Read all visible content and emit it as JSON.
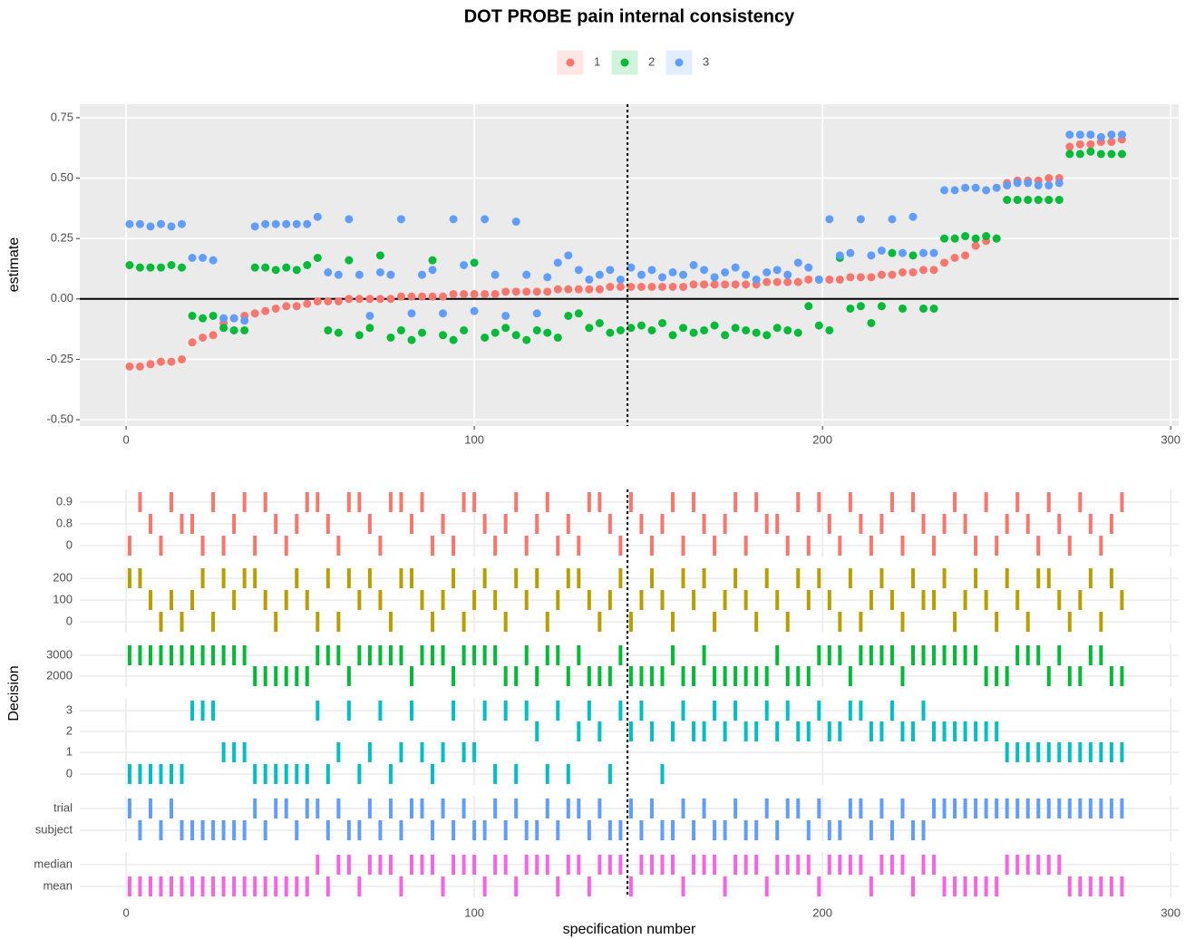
{
  "chart_data": [
    {
      "type": "scatter",
      "title": "DOT PROBE pain internal consistency",
      "y_label": "estimate",
      "xlim": [
        -13.3,
        302.3
      ],
      "xticks": [
        0,
        100,
        200,
        300
      ],
      "ylim": [
        -0.526,
        0.806
      ],
      "yticks": [
        {
          "value": 0.75,
          "label": "0.75"
        },
        {
          "value": 0.5,
          "label": "0.50"
        },
        {
          "value": 0.25,
          "label": "0.25"
        },
        {
          "value": 0,
          "label": "0.00"
        },
        {
          "value": -0.25,
          "label": "-0.25"
        },
        {
          "value": -0.5,
          "label": "-0.50"
        }
      ],
      "grid": true,
      "legend": "top",
      "hline": 0,
      "vline": 144,
      "x": [
        1,
        4,
        7,
        10,
        13,
        16,
        19,
        22,
        25,
        28,
        31,
        34,
        37,
        40,
        43,
        46,
        49,
        52,
        55,
        58,
        61,
        64,
        67,
        70,
        73,
        76,
        79,
        82,
        85,
        88,
        91,
        94,
        97,
        100,
        103,
        106,
        109,
        112,
        115,
        118,
        121,
        124,
        127,
        130,
        133,
        136,
        139,
        142,
        145,
        148,
        151,
        154,
        157,
        160,
        163,
        166,
        169,
        172,
        175,
        178,
        181,
        184,
        187,
        190,
        193,
        196,
        199,
        202,
        205,
        208,
        211,
        214,
        217,
        220,
        223,
        226,
        229,
        232,
        235,
        238,
        241,
        244,
        247,
        250,
        253,
        256,
        259,
        262,
        265,
        268,
        271,
        274,
        277,
        280,
        283,
        286
      ],
      "series": [
        {
          "name": "1",
          "color": "#F8766D",
          "values": [
            -0.28,
            -0.28,
            -0.27,
            -0.26,
            -0.26,
            -0.25,
            -0.18,
            -0.16,
            -0.15,
            -0.1,
            -0.08,
            -0.07,
            -0.06,
            -0.05,
            -0.04,
            -0.03,
            -0.03,
            -0.02,
            -0.01,
            -0.01,
            -0.01,
            0,
            0,
            0,
            0,
            0,
            0.01,
            0.01,
            0.01,
            0.01,
            0.01,
            0.02,
            0.02,
            0.02,
            0.02,
            0.02,
            0.03,
            0.03,
            0.03,
            0.03,
            0.03,
            0.04,
            0.04,
            0.04,
            0.04,
            0.04,
            0.05,
            0.05,
            0.05,
            0.05,
            0.05,
            0.05,
            0.05,
            0.05,
            0.06,
            0.06,
            0.06,
            0.06,
            0.06,
            0.06,
            0.06,
            0.07,
            0.07,
            0.07,
            0.07,
            0.08,
            0.08,
            0.08,
            0.08,
            0.09,
            0.09,
            0.09,
            0.1,
            0.1,
            0.11,
            0.11,
            0.12,
            0.12,
            0.15,
            0.17,
            0.18,
            0.22,
            0.24,
            0.25,
            0.48,
            0.49,
            0.49,
            0.49,
            0.5,
            0.5,
            0.63,
            0.64,
            0.64,
            0.65,
            0.65,
            0.66
          ]
        },
        {
          "name": "2",
          "color": "#00BA38",
          "values": [
            0.14,
            0.13,
            0.13,
            0.13,
            0.14,
            0.13,
            -0.07,
            -0.08,
            -0.07,
            -0.12,
            -0.13,
            -0.13,
            0.13,
            0.13,
            0.12,
            0.13,
            0.12,
            0.14,
            0.17,
            -0.13,
            -0.14,
            0.16,
            -0.15,
            -0.12,
            0.18,
            -0.16,
            -0.13,
            -0.17,
            -0.14,
            0.16,
            -0.15,
            -0.17,
            -0.13,
            0.15,
            -0.16,
            -0.14,
            -0.12,
            -0.15,
            -0.17,
            -0.13,
            -0.14,
            -0.16,
            -0.07,
            -0.06,
            -0.12,
            -0.1,
            -0.14,
            -0.13,
            -0.12,
            -0.11,
            -0.13,
            -0.1,
            -0.15,
            -0.12,
            -0.14,
            -0.13,
            -0.11,
            -0.15,
            -0.12,
            -0.13,
            -0.14,
            -0.15,
            -0.12,
            -0.13,
            -0.14,
            -0.03,
            -0.11,
            -0.13,
            0.17,
            -0.04,
            -0.03,
            -0.1,
            -0.03,
            0.19,
            -0.04,
            0.18,
            -0.04,
            -0.04,
            0.25,
            0.25,
            0.26,
            0.25,
            0.26,
            0.25,
            0.41,
            0.41,
            0.41,
            0.41,
            0.41,
            0.41,
            0.6,
            0.6,
            0.61,
            0.6,
            0.6,
            0.6
          ]
        },
        {
          "name": "3",
          "color": "#619CFF",
          "values": [
            0.31,
            0.31,
            0.3,
            0.31,
            0.3,
            0.31,
            0.17,
            0.17,
            0.16,
            -0.08,
            -0.08,
            -0.09,
            0.3,
            0.31,
            0.31,
            0.31,
            0.31,
            0.31,
            0.34,
            0.11,
            0.1,
            0.33,
            0.1,
            -0.07,
            0.11,
            0.1,
            0.33,
            -0.06,
            0.1,
            0.12,
            -0.06,
            0.33,
            0.14,
            -0.05,
            0.33,
            0.1,
            -0.07,
            0.32,
            0.1,
            -0.06,
            0.09,
            0.15,
            0.18,
            0.12,
            0.08,
            0.1,
            0.12,
            0.08,
            0.13,
            0.1,
            0.12,
            0.09,
            0.11,
            0.1,
            0.14,
            0.12,
            0.09,
            0.11,
            0.13,
            0.1,
            0.08,
            0.11,
            0.12,
            0.1,
            0.15,
            0.13,
            0.08,
            0.33,
            0.18,
            0.19,
            0.33,
            0.18,
            0.2,
            0.33,
            0.19,
            0.34,
            0.19,
            0.19,
            0.45,
            0.45,
            0.46,
            0.46,
            0.45,
            0.46,
            0.47,
            0.48,
            0.48,
            0.47,
            0.47,
            0.48,
            0.68,
            0.68,
            0.68,
            0.67,
            0.68,
            0.68
          ]
        }
      ]
    },
    {
      "type": "decision",
      "y_label": "Decision",
      "x_label": "specification number",
      "xlim": [
        -13.3,
        302.3
      ],
      "xticks": [
        0,
        100,
        200,
        300
      ],
      "vline": 144,
      "panels": [
        {
          "color": "#F8766D",
          "levels": [
            "0.9",
            "0.8",
            "0"
          ],
          "values": [
            2,
            0,
            1,
            2,
            0,
            1,
            1,
            2,
            0,
            2,
            1,
            0,
            2,
            0,
            1,
            2,
            1,
            0,
            0,
            1,
            2,
            0,
            0,
            1,
            2,
            0,
            0,
            1,
            0,
            2,
            1,
            2,
            0,
            0,
            1,
            2,
            1,
            0,
            2,
            1,
            0,
            2,
            1,
            2,
            0,
            0,
            1,
            2,
            0,
            1,
            2,
            1,
            0,
            2,
            0,
            1,
            2,
            1,
            0,
            2,
            0,
            1,
            1,
            2,
            0,
            2,
            0,
            1,
            2,
            0,
            1,
            2,
            1,
            0,
            2,
            0,
            1,
            2,
            1,
            0,
            1,
            2,
            0,
            2,
            1,
            0,
            1,
            2,
            0,
            1,
            2,
            0,
            1,
            2,
            1,
            0
          ]
        },
        {
          "color": "#B79F00",
          "levels": [
            "200",
            "100",
            "0"
          ],
          "values": [
            0,
            0,
            1,
            2,
            1,
            2,
            1,
            0,
            2,
            0,
            1,
            0,
            0,
            1,
            2,
            1,
            0,
            1,
            2,
            0,
            2,
            0,
            1,
            0,
            1,
            2,
            0,
            0,
            1,
            2,
            1,
            0,
            2,
            1,
            0,
            1,
            2,
            0,
            1,
            0,
            2,
            1,
            0,
            0,
            1,
            2,
            1,
            0,
            2,
            1,
            0,
            1,
            2,
            0,
            1,
            0,
            2,
            1,
            0,
            1,
            2,
            0,
            1,
            2,
            0,
            1,
            0,
            1,
            2,
            0,
            2,
            1,
            0,
            1,
            2,
            0,
            1,
            1,
            0,
            2,
            1,
            0,
            1,
            2,
            0,
            1,
            2,
            0,
            0,
            1,
            2,
            1,
            0,
            2,
            0,
            1
          ]
        },
        {
          "color": "#00BA38",
          "levels": [
            "3000",
            "2000"
          ],
          "values": [
            0,
            0,
            0,
            0,
            0,
            0,
            0,
            0,
            0,
            0,
            0,
            0,
            1,
            1,
            1,
            1,
            1,
            1,
            0,
            0,
            0,
            1,
            0,
            0,
            0,
            0,
            0,
            1,
            0,
            0,
            0,
            1,
            0,
            0,
            0,
            0,
            1,
            1,
            0,
            1,
            0,
            0,
            1,
            0,
            1,
            1,
            1,
            0,
            1,
            1,
            1,
            1,
            0,
            1,
            1,
            0,
            1,
            1,
            1,
            1,
            1,
            1,
            0,
            1,
            1,
            1,
            0,
            0,
            0,
            1,
            0,
            0,
            0,
            0,
            1,
            0,
            0,
            0,
            0,
            0,
            0,
            0,
            1,
            1,
            1,
            0,
            0,
            0,
            1,
            0,
            1,
            1,
            0,
            0,
            1,
            1
          ]
        },
        {
          "color": "#00BFC4",
          "levels": [
            "3",
            "2",
            "1",
            "0"
          ],
          "values": [
            3,
            3,
            3,
            3,
            3,
            3,
            0,
            0,
            0,
            2,
            2,
            2,
            3,
            3,
            3,
            3,
            3,
            3,
            0,
            3,
            2,
            0,
            3,
            2,
            0,
            3,
            2,
            0,
            2,
            3,
            2,
            0,
            2,
            2,
            0,
            3,
            0,
            3,
            0,
            1,
            3,
            0,
            3,
            1,
            0,
            1,
            3,
            0,
            1,
            0,
            1,
            3,
            1,
            0,
            1,
            1,
            0,
            1,
            0,
            1,
            1,
            0,
            1,
            0,
            1,
            1,
            0,
            1,
            1,
            0,
            0,
            1,
            1,
            0,
            1,
            1,
            0,
            1,
            1,
            1,
            1,
            1,
            1,
            1,
            2,
            2,
            2,
            2,
            2,
            2,
            2,
            2,
            2,
            2,
            2,
            2
          ]
        },
        {
          "color": "#619CFF",
          "levels": [
            "trial",
            "subject"
          ],
          "values": [
            0,
            1,
            0,
            1,
            0,
            1,
            1,
            1,
            1,
            1,
            1,
            1,
            0,
            1,
            0,
            0,
            1,
            0,
            0,
            1,
            0,
            1,
            1,
            0,
            1,
            0,
            1,
            0,
            0,
            1,
            0,
            1,
            0,
            1,
            1,
            0,
            1,
            0,
            1,
            1,
            0,
            1,
            0,
            0,
            1,
            0,
            1,
            1,
            0,
            1,
            0,
            1,
            1,
            0,
            1,
            0,
            1,
            1,
            0,
            1,
            1,
            0,
            1,
            0,
            0,
            1,
            0,
            1,
            1,
            0,
            0,
            1,
            0,
            1,
            0,
            1,
            1,
            0,
            0,
            0,
            0,
            0,
            0,
            0,
            0,
            0,
            0,
            0,
            0,
            0,
            0,
            0,
            0,
            0,
            0,
            0
          ]
        },
        {
          "color": "#F564E3",
          "levels": [
            "median",
            "mean"
          ],
          "values": [
            1,
            1,
            1,
            1,
            1,
            1,
            1,
            1,
            1,
            1,
            1,
            1,
            1,
            1,
            1,
            1,
            1,
            1,
            0,
            1,
            0,
            0,
            1,
            0,
            0,
            0,
            1,
            0,
            0,
            0,
            1,
            0,
            0,
            0,
            1,
            0,
            0,
            1,
            0,
            0,
            0,
            1,
            0,
            0,
            1,
            0,
            0,
            0,
            1,
            0,
            0,
            0,
            0,
            1,
            0,
            0,
            0,
            1,
            0,
            0,
            0,
            1,
            0,
            0,
            0,
            0,
            1,
            0,
            0,
            0,
            0,
            1,
            0,
            0,
            0,
            1,
            0,
            0,
            1,
            1,
            1,
            1,
            1,
            1,
            0,
            0,
            0,
            0,
            0,
            0,
            1,
            1,
            1,
            1,
            1,
            1
          ]
        }
      ]
    }
  ]
}
